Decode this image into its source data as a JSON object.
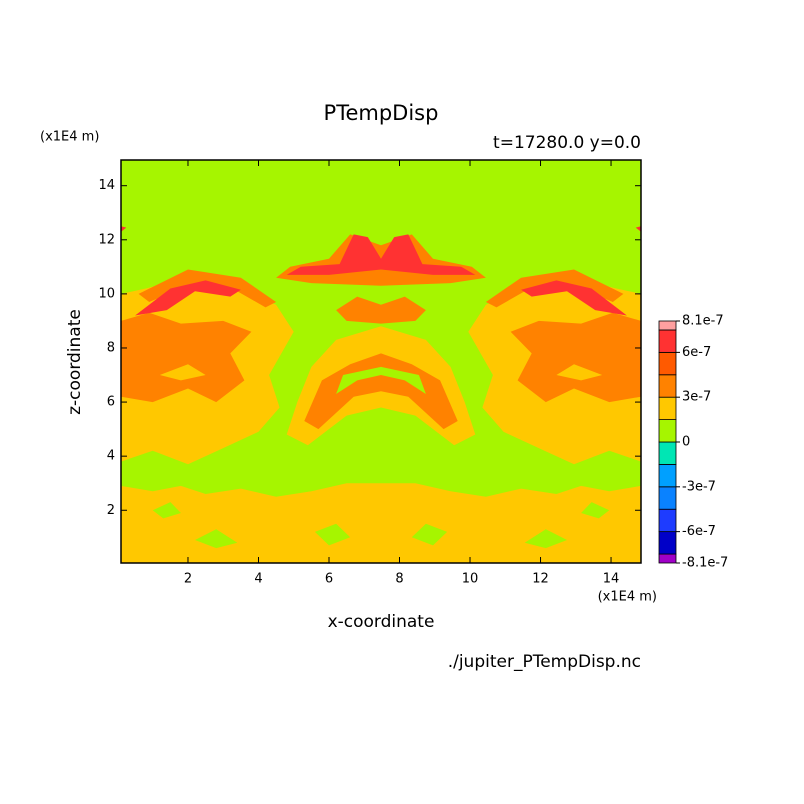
{
  "chart_data": {
    "type": "contour",
    "title": "PTempDisp",
    "subtitle": "t=17280.0 y=0.0",
    "x_label": "x-coordinate",
    "y_label": "z-coordinate",
    "x_unit": "(x1E4 m)",
    "y_unit": "(x1E4 m)",
    "source": "./jupiter_PTempDisp.nc",
    "xlim": [
      0.1,
      14.85
    ],
    "ylim": [
      0.05,
      14.95
    ],
    "xticks": [
      2,
      4,
      6,
      8,
      10,
      12,
      14
    ],
    "yticks": [
      2,
      4,
      6,
      8,
      10,
      12,
      14
    ],
    "levels": [
      -8.1e-07,
      -7.5e-07,
      -6e-07,
      -4.5e-07,
      -3e-07,
      -1.5e-07,
      0,
      1.5e-07,
      3e-07,
      4.5e-07,
      6e-07,
      7.5e-07,
      8.1e-07
    ],
    "colors": [
      "#a000c8",
      "#0000c8",
      "#1e3cff",
      "#0a82ff",
      "#00a0ff",
      "#00e6b4",
      "#a6f500",
      "#ffc800",
      "#ff8200",
      "#ff5a00",
      "#ff3232",
      "#ffa0a0"
    ],
    "colorbar_ticks": [
      8.1e-07,
      6e-07,
      3e-07,
      0,
      -3e-07,
      -6e-07,
      -8.1e-07
    ]
  }
}
